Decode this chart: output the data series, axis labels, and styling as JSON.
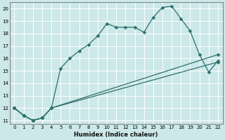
{
  "xlabel": "Humidex (Indice chaleur)",
  "bg_color": "#cce8e8",
  "line_color": "#2d6e6e",
  "grid_color": "#ffffff",
  "xlim": [
    -0.5,
    22.5
  ],
  "ylim": [
    10.7,
    20.5
  ],
  "yticks": [
    11,
    12,
    13,
    14,
    15,
    16,
    17,
    18,
    19,
    20
  ],
  "xticks": [
    0,
    1,
    2,
    3,
    4,
    5,
    6,
    7,
    8,
    9,
    10,
    11,
    12,
    13,
    14,
    15,
    16,
    17,
    18,
    19,
    20,
    21,
    22
  ],
  "line1_x": [
    0,
    1,
    2,
    3,
    4,
    5,
    6,
    7,
    8,
    9,
    10,
    11,
    12,
    13,
    14,
    15,
    16,
    17,
    18,
    19,
    20,
    21,
    22
  ],
  "line1_y": [
    12.0,
    11.4,
    11.0,
    11.2,
    12.0,
    15.2,
    16.0,
    16.6,
    17.1,
    17.8,
    18.8,
    18.5,
    18.5,
    18.5,
    18.1,
    19.3,
    20.1,
    20.2,
    19.2,
    18.2,
    16.3,
    14.9,
    15.8
  ],
  "line2_x": [
    0,
    1,
    2,
    3,
    4,
    22
  ],
  "line2_y": [
    12.0,
    11.4,
    11.0,
    11.2,
    12.0,
    16.3
  ],
  "line3_x": [
    0,
    1,
    2,
    3,
    4,
    22
  ],
  "line3_y": [
    12.0,
    11.4,
    11.0,
    11.2,
    12.0,
    15.7
  ]
}
